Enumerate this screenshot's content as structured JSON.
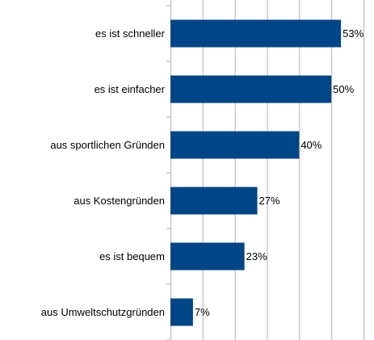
{
  "chart_data": {
    "type": "barh",
    "categories": [
      "es ist schneller",
      "es ist einfacher",
      "aus sportlichen Gründen",
      "aus Kostengründen",
      "es ist bequem",
      "aus Umweltschutzgründen"
    ],
    "values": [
      53,
      50,
      40,
      27,
      23,
      7
    ],
    "value_labels": [
      "53%",
      "50%",
      "40%",
      "27%",
      "23%",
      "7%"
    ],
    "color": "#004586",
    "xlim": [
      0,
      60
    ],
    "xticks": [
      0,
      10,
      20,
      30,
      40,
      50,
      60
    ],
    "grid": true
  }
}
